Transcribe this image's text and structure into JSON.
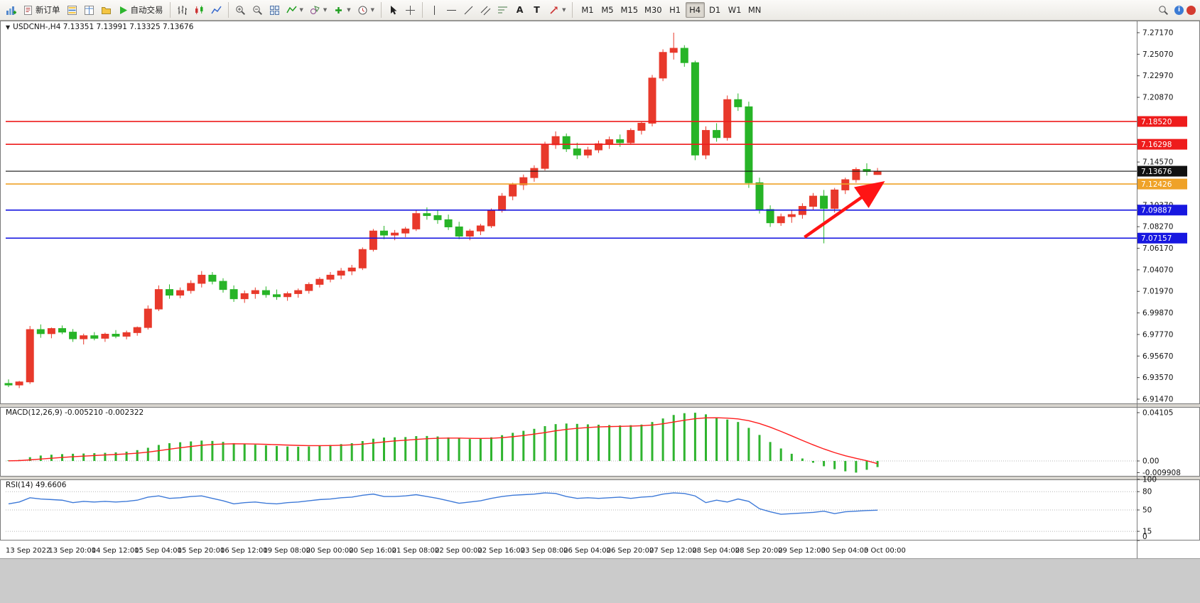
{
  "toolbar": {
    "new_order_label": "新订单",
    "auto_trading_label": "自动交易",
    "timeframes": [
      "M1",
      "M5",
      "M15",
      "M30",
      "H1",
      "H4",
      "D1",
      "W1",
      "MN"
    ],
    "active_timeframe": "H4"
  },
  "chart": {
    "title": "USDCNH-,H4 7.13351 7.13991 7.13325 7.13676",
    "symbol": "USDCNH-",
    "period": "H4",
    "open": "7.13351",
    "high": "7.13991",
    "low": "7.13325",
    "close": "7.13676",
    "price_axis": [
      "7.27170",
      "7.25070",
      "7.22970",
      "7.20870",
      "7.14570",
      "7.10370",
      "7.08270",
      "7.06170",
      "7.04070",
      "7.01970",
      "6.99870",
      "6.97770",
      "6.95670",
      "6.93570",
      "6.91470"
    ],
    "levels": [
      {
        "price": 7.1852,
        "label": "7.18520",
        "color": "#ee1c1c"
      },
      {
        "price": 7.16298,
        "label": "7.16298",
        "color": "#ee1c1c"
      },
      {
        "price": 7.13676,
        "label": "7.13676",
        "color": "#111111"
      },
      {
        "price": 7.12426,
        "label": "7.12426",
        "color": "#efa228"
      },
      {
        "price": 7.09887,
        "label": "7.09887",
        "color": "#1717e0"
      },
      {
        "price": 7.07157,
        "label": "7.07157",
        "color": "#1717e0"
      }
    ],
    "time_axis": [
      "13 Sep 2022",
      "13 Sep 20:00",
      "14 Sep 12:00",
      "15 Sep 04:00",
      "15 Sep 20:00",
      "16 Sep 12:00",
      "19 Sep 08:00",
      "20 Sep 00:00",
      "20 Sep 16:00",
      "21 Sep 08:00",
      "22 Sep 00:00",
      "22 Sep 16:00",
      "23 Sep 08:00",
      "26 Sep 04:00",
      "26 Sep 20:00",
      "27 Sep 12:00",
      "28 Sep 04:00",
      "28 Sep 20:00",
      "29 Sep 12:00",
      "30 Sep 04:00",
      "3 Oct 00:00"
    ]
  },
  "macd": {
    "label": "MACD(12,26,9) -0.005210 -0.002322",
    "values": [
      "-0.005210",
      "-0.002322"
    ],
    "axis": [
      "0.04105",
      "0.00",
      "-0.009908"
    ]
  },
  "rsi": {
    "label": "RSI(14) 49.6606",
    "value": "49.6606",
    "axis": [
      "100",
      "80",
      "50",
      "15",
      "0"
    ],
    "levels": [
      80,
      50,
      15
    ]
  },
  "chart_data": {
    "type": "candlestick",
    "symbol": "USDCNH",
    "timeframe": "H4",
    "ylim": [
      6.9147,
      7.2717
    ],
    "up_color_convention": "red-up-green-down",
    "candles": [
      [
        6.93,
        6.934,
        6.9265,
        6.9285
      ],
      [
        6.9285,
        6.9325,
        6.9255,
        6.9315
      ],
      [
        6.9315,
        6.986,
        6.9295,
        6.9825
      ],
      [
        6.9825,
        6.9875,
        6.9745,
        6.9785
      ],
      [
        6.9785,
        6.9845,
        6.974,
        6.9835
      ],
      [
        6.9835,
        6.9865,
        6.978,
        6.98
      ],
      [
        6.98,
        6.983,
        6.9705,
        6.9735
      ],
      [
        6.9735,
        6.9785,
        6.968,
        6.9765
      ],
      [
        6.9765,
        6.98,
        6.972,
        6.974
      ],
      [
        6.974,
        6.9795,
        6.9705,
        6.978
      ],
      [
        6.978,
        6.982,
        6.974,
        6.976
      ],
      [
        6.976,
        6.9815,
        6.973,
        6.9795
      ],
      [
        6.9795,
        6.9855,
        6.9765,
        6.9845
      ],
      [
        6.9845,
        7.006,
        6.9825,
        7.0025
      ],
      [
        7.0025,
        7.0255,
        7.0005,
        7.0215
      ],
      [
        7.0215,
        7.0265,
        7.0125,
        7.016
      ],
      [
        7.016,
        7.0235,
        7.013,
        7.0205
      ],
      [
        7.0205,
        7.0305,
        7.0175,
        7.0275
      ],
      [
        7.0275,
        7.0395,
        7.0235,
        7.0355
      ],
      [
        7.0355,
        7.0385,
        7.0265,
        7.0295
      ],
      [
        7.0295,
        7.0325,
        7.0185,
        7.0215
      ],
      [
        7.0215,
        7.0255,
        7.0095,
        7.0125
      ],
      [
        7.0125,
        7.0205,
        7.0085,
        7.0175
      ],
      [
        7.0175,
        7.0235,
        7.0125,
        7.0205
      ],
      [
        7.0205,
        7.0245,
        7.0135,
        7.0165
      ],
      [
        7.0165,
        7.0215,
        7.0115,
        7.0145
      ],
      [
        7.0145,
        7.0195,
        7.0105,
        7.0175
      ],
      [
        7.0175,
        7.0225,
        7.0135,
        7.0205
      ],
      [
        7.0205,
        7.0285,
        7.0175,
        7.0265
      ],
      [
        7.0265,
        7.0335,
        7.0235,
        7.0315
      ],
      [
        7.0315,
        7.0385,
        7.0285,
        7.0355
      ],
      [
        7.0355,
        7.0425,
        7.0315,
        7.0395
      ],
      [
        7.0395,
        7.0455,
        7.0355,
        7.0425
      ],
      [
        7.0425,
        7.0625,
        7.0405,
        7.0605
      ],
      [
        7.0605,
        7.0805,
        7.0585,
        7.0785
      ],
      [
        7.0785,
        7.0835,
        7.0705,
        7.0745
      ],
      [
        7.0745,
        7.0795,
        7.0695,
        7.0765
      ],
      [
        7.0765,
        7.0825,
        7.0725,
        7.0805
      ],
      [
        7.0805,
        7.0985,
        7.0785,
        7.0955
      ],
      [
        7.0955,
        7.1015,
        7.0895,
        7.0935
      ],
      [
        7.0935,
        7.0985,
        7.0855,
        7.0895
      ],
      [
        7.0895,
        7.0945,
        7.0795,
        7.0825
      ],
      [
        7.0825,
        7.0875,
        7.0705,
        7.0735
      ],
      [
        7.0735,
        7.0805,
        7.0695,
        7.0785
      ],
      [
        7.0785,
        7.0855,
        7.0745,
        7.0835
      ],
      [
        7.0835,
        7.1005,
        7.0815,
        7.0985
      ],
      [
        7.0985,
        7.1155,
        7.0965,
        7.1125
      ],
      [
        7.1125,
        7.1255,
        7.1085,
        7.1235
      ],
      [
        7.1235,
        7.1335,
        7.1185,
        7.1305
      ],
      [
        7.1305,
        7.1425,
        7.1265,
        7.1395
      ],
      [
        7.1395,
        7.1655,
        7.1375,
        7.1625
      ],
      [
        7.1625,
        7.1755,
        7.1585,
        7.1705
      ],
      [
        7.1705,
        7.1735,
        7.1555,
        7.1585
      ],
      [
        7.1585,
        7.1645,
        7.1485,
        7.1525
      ],
      [
        7.1525,
        7.1605,
        7.1495,
        7.1575
      ],
      [
        7.1575,
        7.1665,
        7.1545,
        7.1635
      ],
      [
        7.1635,
        7.1705,
        7.1585,
        7.1675
      ],
      [
        7.1675,
        7.1725,
        7.1605,
        7.1645
      ],
      [
        7.1645,
        7.1785,
        7.1625,
        7.1765
      ],
      [
        7.1765,
        7.1855,
        7.1725,
        7.1835
      ],
      [
        7.1835,
        7.2305,
        7.1805,
        7.2275
      ],
      [
        7.2275,
        7.2555,
        7.2245,
        7.2525
      ],
      [
        7.2525,
        7.2717,
        7.2455,
        7.2565
      ],
      [
        7.2565,
        7.2595,
        7.2385,
        7.2425
      ],
      [
        7.2425,
        7.2445,
        7.1475,
        7.1525
      ],
      [
        7.1525,
        7.1805,
        7.1485,
        7.1765
      ],
      [
        7.1765,
        7.1835,
        7.1655,
        7.1695
      ],
      [
        7.1695,
        7.2105,
        7.1665,
        7.2065
      ],
      [
        7.2065,
        7.2125,
        7.1955,
        7.1995
      ],
      [
        7.1995,
        7.2045,
        7.1205,
        7.1255
      ],
      [
        7.1255,
        7.1305,
        7.0955,
        7.0995
      ],
      [
        7.0995,
        7.1035,
        7.0825,
        7.0865
      ],
      [
        7.0865,
        7.0955,
        7.0835,
        7.0925
      ],
      [
        7.0925,
        7.0985,
        7.0865,
        7.0945
      ],
      [
        7.0945,
        7.1055,
        7.0905,
        7.1025
      ],
      [
        7.1025,
        7.1155,
        7.0985,
        7.1125
      ],
      [
        7.1125,
        7.1185,
        7.0665,
        7.1005
      ],
      [
        7.1005,
        7.1205,
        7.0965,
        7.1185
      ],
      [
        7.1185,
        7.1305,
        7.1145,
        7.1285
      ],
      [
        7.1285,
        7.1405,
        7.1255,
        7.1385
      ],
      [
        7.1385,
        7.1445,
        7.1325,
        7.1365
      ],
      [
        7.13351,
        7.13991,
        7.13325,
        7.13676
      ]
    ],
    "macd_ylim": [
      -0.009908,
      0.04105
    ],
    "macd_hist": [
      0.0005,
      0.0009,
      0.0032,
      0.0046,
      0.0053,
      0.0058,
      0.0061,
      0.0063,
      0.0066,
      0.0069,
      0.0073,
      0.0079,
      0.0092,
      0.0112,
      0.0136,
      0.0151,
      0.0159,
      0.0166,
      0.0173,
      0.017,
      0.0162,
      0.0151,
      0.0143,
      0.0138,
      0.0132,
      0.0127,
      0.0123,
      0.0121,
      0.0123,
      0.0129,
      0.0136,
      0.0143,
      0.0151,
      0.0169,
      0.0189,
      0.0199,
      0.0201,
      0.0203,
      0.0211,
      0.0212,
      0.0208,
      0.02,
      0.0191,
      0.0186,
      0.0189,
      0.0201,
      0.0219,
      0.0239,
      0.0256,
      0.0273,
      0.0296,
      0.0313,
      0.0318,
      0.0315,
      0.0311,
      0.0308,
      0.0305,
      0.0302,
      0.0304,
      0.0309,
      0.0331,
      0.0361,
      0.0391,
      0.0406,
      0.041,
      0.0396,
      0.0371,
      0.0352,
      0.0331,
      0.0281,
      0.0221,
      0.0161,
      0.0106,
      0.0061,
      0.0021,
      -0.0015,
      -0.0045,
      -0.007,
      -0.0088,
      -0.0099,
      -0.0075,
      -0.0052
    ],
    "macd_signal": [
      0.0001,
      0.0003,
      0.0009,
      0.0016,
      0.0023,
      0.003,
      0.0036,
      0.0041,
      0.0046,
      0.0051,
      0.0055,
      0.006,
      0.0066,
      0.0075,
      0.0087,
      0.01,
      0.0112,
      0.0123,
      0.0133,
      0.014,
      0.0144,
      0.0146,
      0.0145,
      0.0144,
      0.0141,
      0.0138,
      0.0135,
      0.0132,
      0.013,
      0.013,
      0.0131,
      0.0133,
      0.0137,
      0.0143,
      0.0152,
      0.0162,
      0.017,
      0.0176,
      0.0183,
      0.0189,
      0.0193,
      0.0194,
      0.0194,
      0.0192,
      0.0191,
      0.0193,
      0.0198,
      0.0206,
      0.0216,
      0.0228,
      0.0241,
      0.0256,
      0.0268,
      0.0277,
      0.0284,
      0.0289,
      0.0292,
      0.0294,
      0.0296,
      0.0299,
      0.0305,
      0.0316,
      0.0331,
      0.0346,
      0.0359,
      0.0366,
      0.0367,
      0.0364,
      0.0357,
      0.0342,
      0.0318,
      0.0287,
      0.0251,
      0.0213,
      0.0174,
      0.0137,
      0.0102,
      0.0071,
      0.0044,
      0.0022,
      0.0002,
      -0.0023
    ],
    "rsi_range": [
      0,
      100
    ],
    "rsi": [
      60,
      63,
      70,
      68,
      67,
      66,
      62,
      64,
      63,
      64,
      63,
      64,
      66,
      71,
      73,
      69,
      70,
      72,
      73,
      69,
      65,
      60,
      62,
      63,
      61,
      60,
      62,
      63,
      65,
      67,
      68,
      70,
      71,
      74,
      76,
      72,
      72,
      73,
      75,
      72,
      69,
      65,
      61,
      63,
      65,
      69,
      72,
      74,
      75,
      76,
      78,
      77,
      72,
      69,
      70,
      69,
      70,
      71,
      69,
      71,
      72,
      76,
      78,
      77,
      73,
      62,
      66,
      63,
      68,
      64,
      52,
      47,
      43,
      44,
      45,
      46,
      48,
      44,
      47,
      48,
      49,
      49.66
    ],
    "colors": {
      "candle_up": "#e8392b",
      "candle_down": "#27b427",
      "macd": "#2fb42f",
      "signal": "#ff1d1d",
      "rsi": "#3d79d8",
      "background": "#ffffff"
    },
    "annotations": {
      "arrow": {
        "from": {
          "bar": 74.2,
          "price": 7.0725
        },
        "to": {
          "bar": 81.2,
          "price": 7.1235
        },
        "color": "#ff1414"
      }
    }
  }
}
